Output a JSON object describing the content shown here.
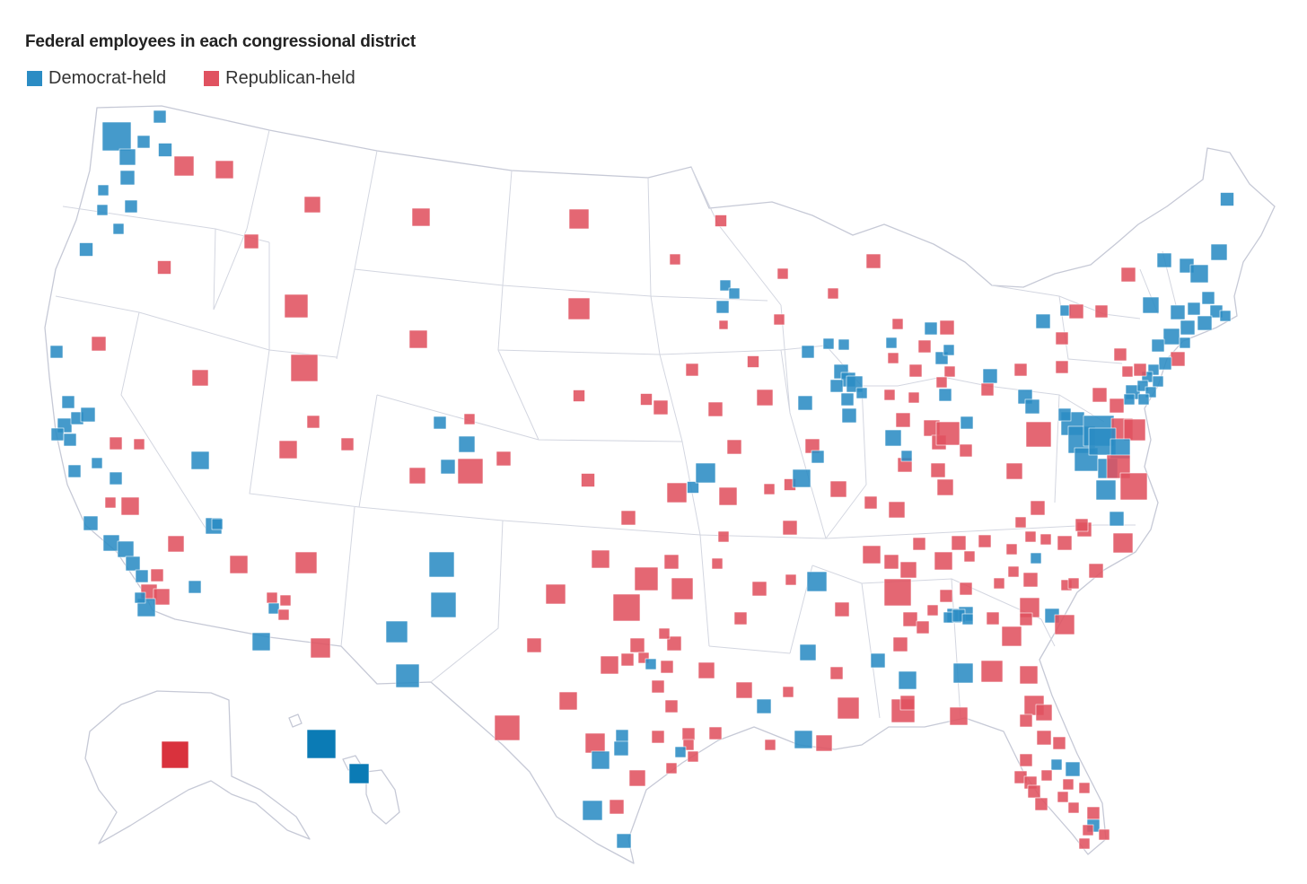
{
  "title": "Federal employees in each congressional district",
  "legend": {
    "dem_label": "Democrat-held",
    "rep_label": "Republican-held"
  },
  "colors": {
    "dem": "#2b8cc4",
    "rep": "#e05260",
    "dem_alaska_hawaii": "#0b7bb5",
    "rep_alaska": "#d9323d",
    "outline": "#c6c9d6"
  }
}
